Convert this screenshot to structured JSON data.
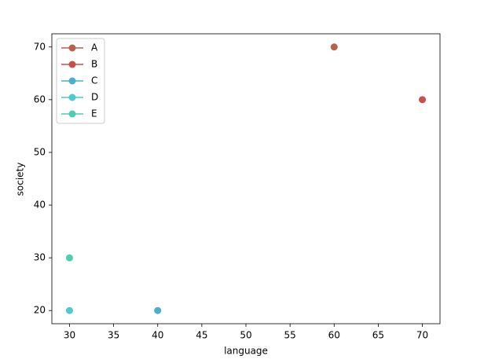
{
  "chart_data": {
    "type": "line",
    "x_label": "language",
    "y_label": "society",
    "series": [
      {
        "name": "A",
        "color": "#b5644a",
        "x": [
          60
        ],
        "values": [
          70
        ]
      },
      {
        "name": "B",
        "color": "#c94f4a",
        "x": [
          70
        ],
        "values": [
          60
        ]
      },
      {
        "name": "C",
        "color": "#4aaed0",
        "x": [
          40
        ],
        "values": [
          20
        ]
      },
      {
        "name": "D",
        "color": "#4bcbd0",
        "x": [
          30
        ],
        "values": [
          20
        ]
      },
      {
        "name": "E",
        "color": "#4ccfae",
        "x": [
          30
        ],
        "values": [
          30
        ]
      }
    ],
    "xlim": [
      28,
      72
    ],
    "xticks": [
      30,
      35,
      40,
      45,
      50,
      55,
      60,
      65,
      70
    ],
    "ylim": [
      17.5,
      72.5
    ],
    "yticks": [
      20,
      30,
      40,
      50,
      60,
      70
    ],
    "legend": "upper left",
    "grid": false,
    "markers": true
  }
}
